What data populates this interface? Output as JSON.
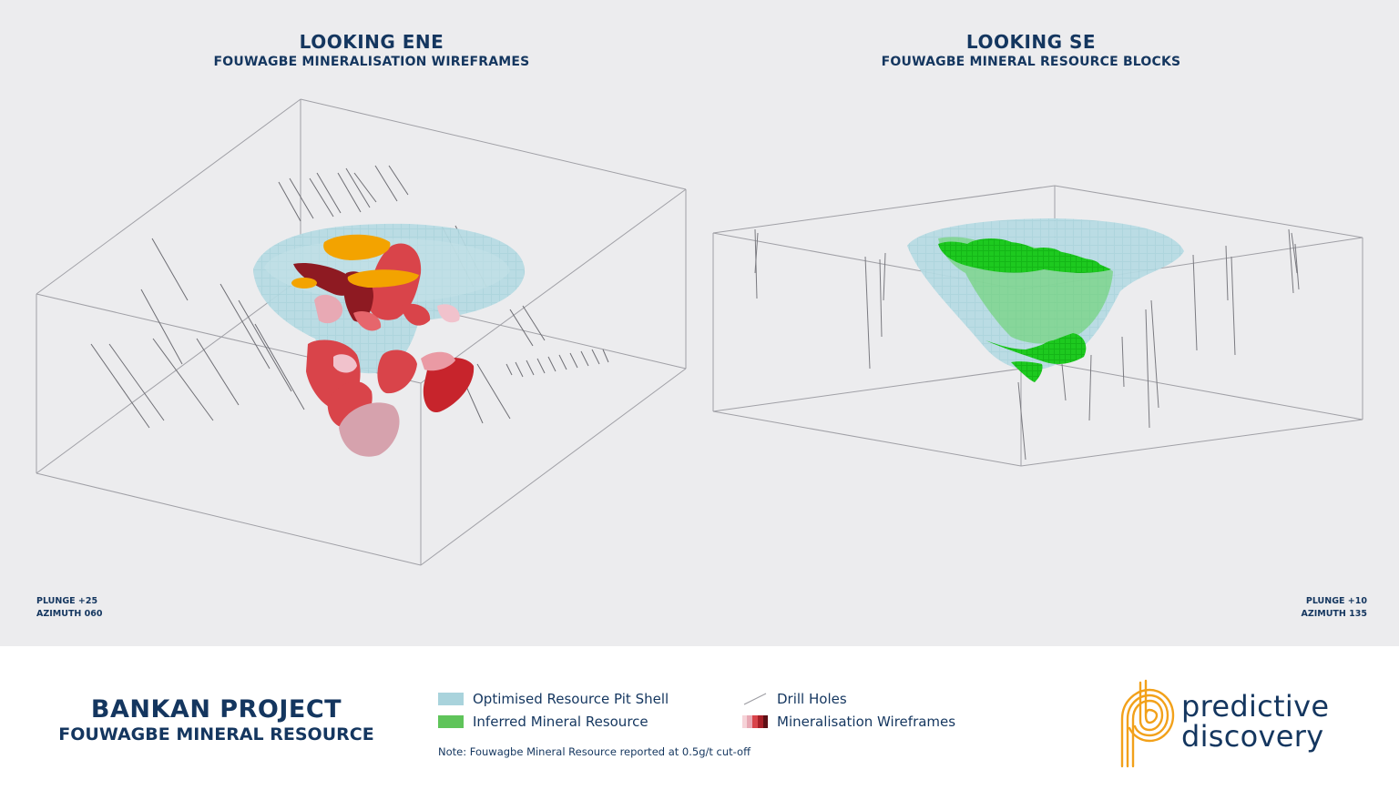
{
  "left_view": {
    "title": "LOOKING ENE",
    "subtitle": "FOUWAGBE MINERALISATION WIREFRAMES",
    "plunge": "PLUNGE +25",
    "azimuth": "AZIMUTH 060"
  },
  "right_view": {
    "title": "LOOKING SE",
    "subtitle": "FOUWAGBE MINERAL RESOURCE BLOCKS",
    "plunge": "PLUNGE +10",
    "azimuth": "AZIMUTH 135"
  },
  "project": {
    "title": "BANKAN PROJECT",
    "subtitle": "FOUWAGBE MINERAL RESOURCE"
  },
  "legend": {
    "pit_shell": "Optimised Resource Pit Shell",
    "inferred": "Inferred Mineral Resource",
    "drill_holes": "Drill Holes",
    "wireframes": "Mineralisation Wireframes"
  },
  "note": "Note: Fouwagbe Mineral Resource reported at 0.5g/t cut-off",
  "logo": {
    "line1": "predictive",
    "line2": "discovery"
  },
  "colors": {
    "title_navy": "#14365f",
    "pit_shell": "#a9d3dc",
    "inferred_green": "#17c21a",
    "wireframe_red": "#d9444a",
    "wireframe_dark": "#8e1a22",
    "wireframe_pink": "#e8a9b4",
    "gold": "#f3a300",
    "logo_orange": "#f2a11a"
  }
}
